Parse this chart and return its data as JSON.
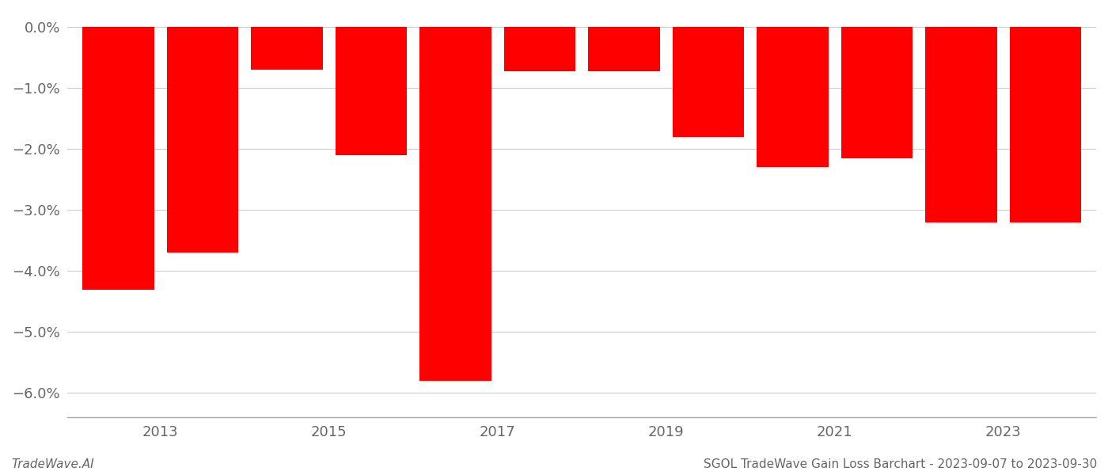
{
  "years": [
    2012,
    2013,
    2014,
    2015,
    2016,
    2017,
    2018,
    2019,
    2020,
    2021,
    2022,
    2023
  ],
  "values": [
    -4.3,
    -3.7,
    -0.7,
    -2.1,
    -5.8,
    -0.72,
    -0.72,
    -1.8,
    -2.3,
    -2.15,
    -3.2,
    -3.2
  ],
  "bar_color": "#ff0000",
  "background_color": "#ffffff",
  "grid_color": "#cccccc",
  "axis_color": "#aaaaaa",
  "text_color": "#666666",
  "ylim_min": -6.4,
  "ylim_max": 0.25,
  "yticks": [
    0.0,
    -1.0,
    -2.0,
    -3.0,
    -4.0,
    -5.0,
    -6.0
  ],
  "xtick_positions": [
    2012.5,
    2014.5,
    2016.5,
    2018.5,
    2020.5,
    2022.5
  ],
  "xtick_labels": [
    "2013",
    "2015",
    "2017",
    "2019",
    "2021",
    "2023"
  ],
  "footer_left": "TradeWave.AI",
  "footer_right": "SGOL TradeWave Gain Loss Barchart - 2023-09-07 to 2023-09-30",
  "bar_width": 0.85
}
